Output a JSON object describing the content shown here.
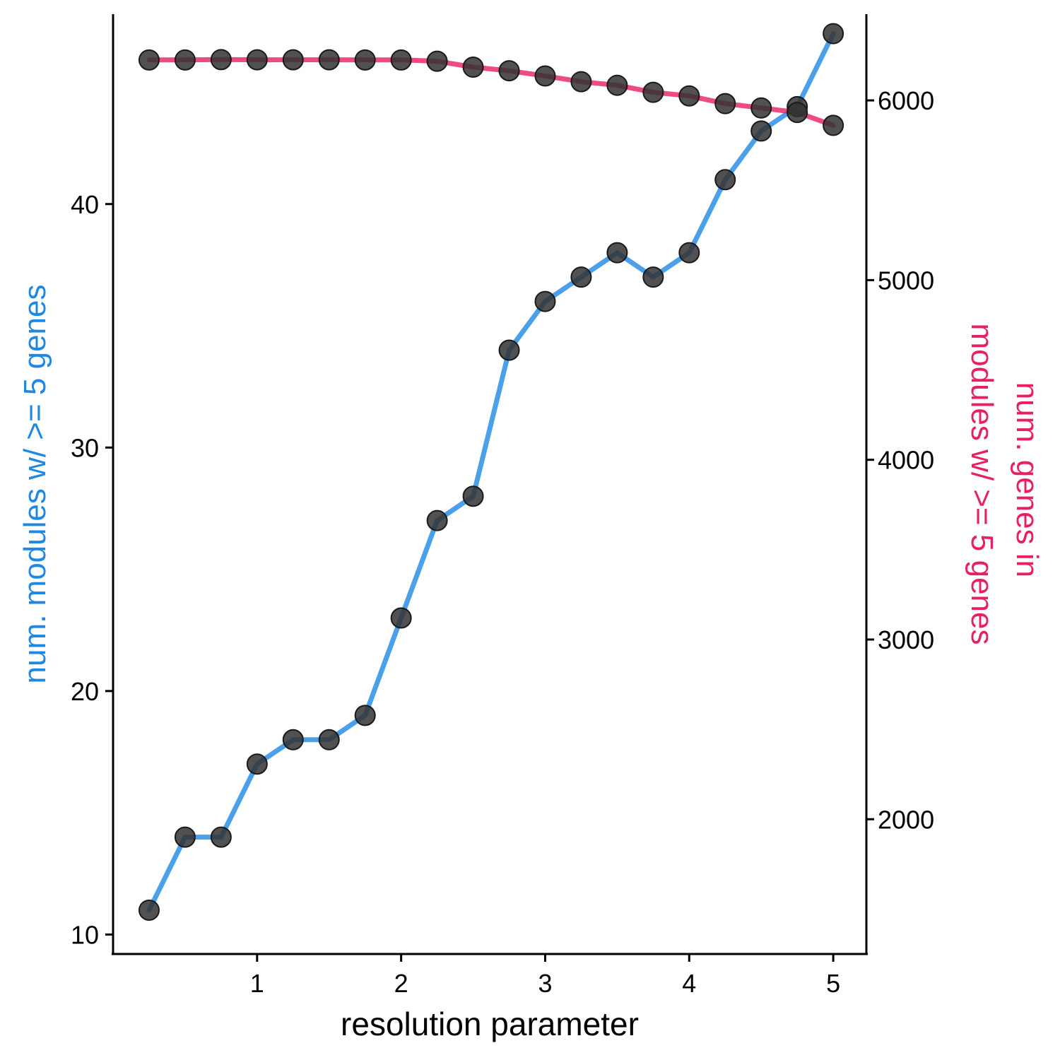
{
  "chart_data": {
    "type": "line",
    "x": [
      0.25,
      0.5,
      0.75,
      1.0,
      1.25,
      1.5,
      1.75,
      2.0,
      2.25,
      2.5,
      2.75,
      3.0,
      3.25,
      3.5,
      3.75,
      4.0,
      4.25,
      4.5,
      4.75,
      5.0
    ],
    "series": [
      {
        "axis": "left",
        "color": "#1E88E5",
        "values": [
          11,
          14,
          14,
          17,
          18,
          18,
          19,
          23,
          27,
          28,
          34,
          36,
          37,
          38,
          37,
          38,
          41,
          43,
          44,
          47
        ]
      },
      {
        "axis": "right",
        "color": "#E91E63",
        "values": [
          6225,
          6225,
          6227,
          6226,
          6226,
          6226,
          6225,
          6225,
          6218,
          6185,
          6165,
          6136,
          6104,
          6084,
          6045,
          6025,
          5982,
          5958,
          5933,
          5861
        ]
      }
    ],
    "xlabel": "resolution parameter",
    "ylabel": "num. modules w/ >= 5 genes",
    "ylabel_right": "num. genes in\nmodules w/ >= 5 genes",
    "xticks": [
      "1",
      "2",
      "3",
      "4",
      "5"
    ],
    "yticks_left": [
      "10",
      "20",
      "30",
      "40"
    ],
    "yticks_right": [
      "2000",
      "3000",
      "4000",
      "5000",
      "6000"
    ],
    "xlim": [
      0.0,
      5.23
    ],
    "ylim_left": [
      9.2,
      47.8
    ],
    "ylim_right": [
      1250,
      6480
    ],
    "ylabel_color": "#1E88E5",
    "ylabel_right_color": "#E91E63",
    "point_color": "#333333",
    "grid": false,
    "legend": "none"
  }
}
